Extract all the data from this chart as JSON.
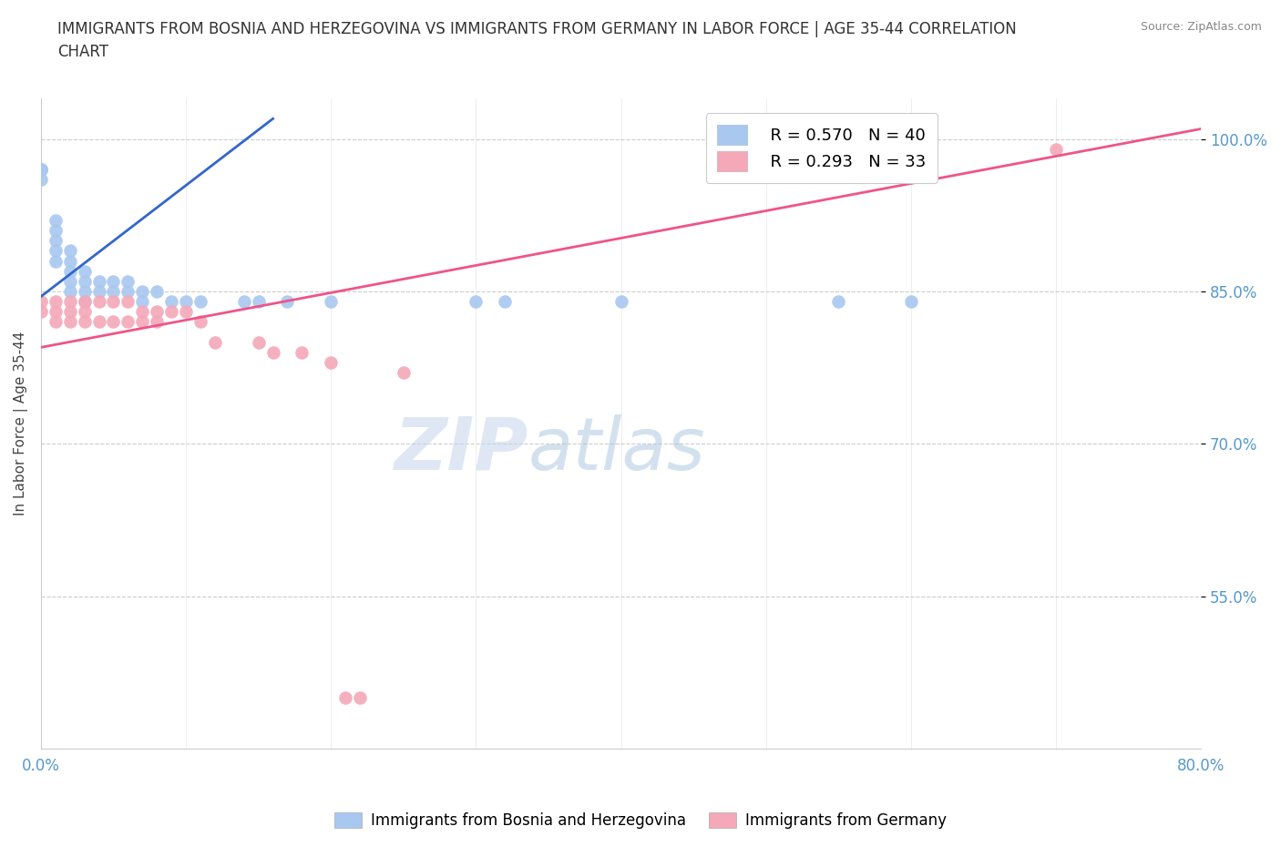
{
  "title": "IMMIGRANTS FROM BOSNIA AND HERZEGOVINA VS IMMIGRANTS FROM GERMANY IN LABOR FORCE | AGE 35-44 CORRELATION\nCHART",
  "source_text": "Source: ZipAtlas.com",
  "ylabel": "In Labor Force | Age 35-44",
  "ytick_labels": [
    "55.0%",
    "70.0%",
    "85.0%",
    "100.0%"
  ],
  "ytick_values": [
    0.55,
    0.7,
    0.85,
    1.0
  ],
  "blue_label": "Immigrants from Bosnia and Herzegovina",
  "pink_label": "Immigrants from Germany",
  "blue_color": "#A8C8F0",
  "pink_color": "#F4A8B8",
  "blue_line_color": "#3366CC",
  "pink_line_color": "#EE5588",
  "blue_scatter_x": [
    0.0,
    0.0,
    0.0,
    0.0,
    0.0,
    0.01,
    0.01,
    0.01,
    0.01,
    0.01,
    0.02,
    0.02,
    0.02,
    0.02,
    0.02,
    0.03,
    0.03,
    0.03,
    0.03,
    0.04,
    0.04,
    0.05,
    0.05,
    0.06,
    0.06,
    0.07,
    0.07,
    0.08,
    0.09,
    0.1,
    0.11,
    0.14,
    0.15,
    0.17,
    0.2,
    0.3,
    0.32,
    0.4,
    0.55,
    0.6
  ],
  "blue_scatter_y": [
    0.97,
    0.97,
    0.97,
    0.97,
    0.96,
    0.92,
    0.91,
    0.9,
    0.89,
    0.88,
    0.89,
    0.88,
    0.87,
    0.86,
    0.85,
    0.87,
    0.86,
    0.85,
    0.84,
    0.86,
    0.85,
    0.86,
    0.85,
    0.86,
    0.85,
    0.85,
    0.84,
    0.85,
    0.84,
    0.84,
    0.84,
    0.84,
    0.84,
    0.84,
    0.84,
    0.84,
    0.84,
    0.84,
    0.84,
    0.84
  ],
  "pink_scatter_x": [
    0.0,
    0.0,
    0.01,
    0.01,
    0.01,
    0.02,
    0.02,
    0.02,
    0.03,
    0.03,
    0.03,
    0.04,
    0.04,
    0.05,
    0.05,
    0.06,
    0.06,
    0.07,
    0.07,
    0.08,
    0.08,
    0.09,
    0.1,
    0.11,
    0.12,
    0.15,
    0.16,
    0.18,
    0.2,
    0.21,
    0.22,
    0.25,
    0.7
  ],
  "pink_scatter_y": [
    0.84,
    0.83,
    0.84,
    0.83,
    0.82,
    0.84,
    0.83,
    0.82,
    0.84,
    0.83,
    0.82,
    0.84,
    0.82,
    0.84,
    0.82,
    0.84,
    0.82,
    0.83,
    0.82,
    0.83,
    0.82,
    0.83,
    0.83,
    0.82,
    0.8,
    0.8,
    0.79,
    0.79,
    0.78,
    0.45,
    0.45,
    0.77,
    0.99
  ],
  "watermark_zip": "ZIP",
  "watermark_atlas": "atlas",
  "xmin": 0.0,
  "xmax": 0.8,
  "ymin": 0.4,
  "ymax": 1.04,
  "legend_R_blue": "R = 0.570",
  "legend_N_blue": "N = 40",
  "legend_R_pink": "R = 0.293",
  "legend_N_pink": "N = 33",
  "blue_line_x0": 0.0,
  "blue_line_y0": 0.845,
  "blue_line_x1": 0.16,
  "blue_line_y1": 1.02,
  "pink_line_x0": 0.0,
  "pink_line_y0": 0.795,
  "pink_line_x1": 0.8,
  "pink_line_y1": 1.01
}
